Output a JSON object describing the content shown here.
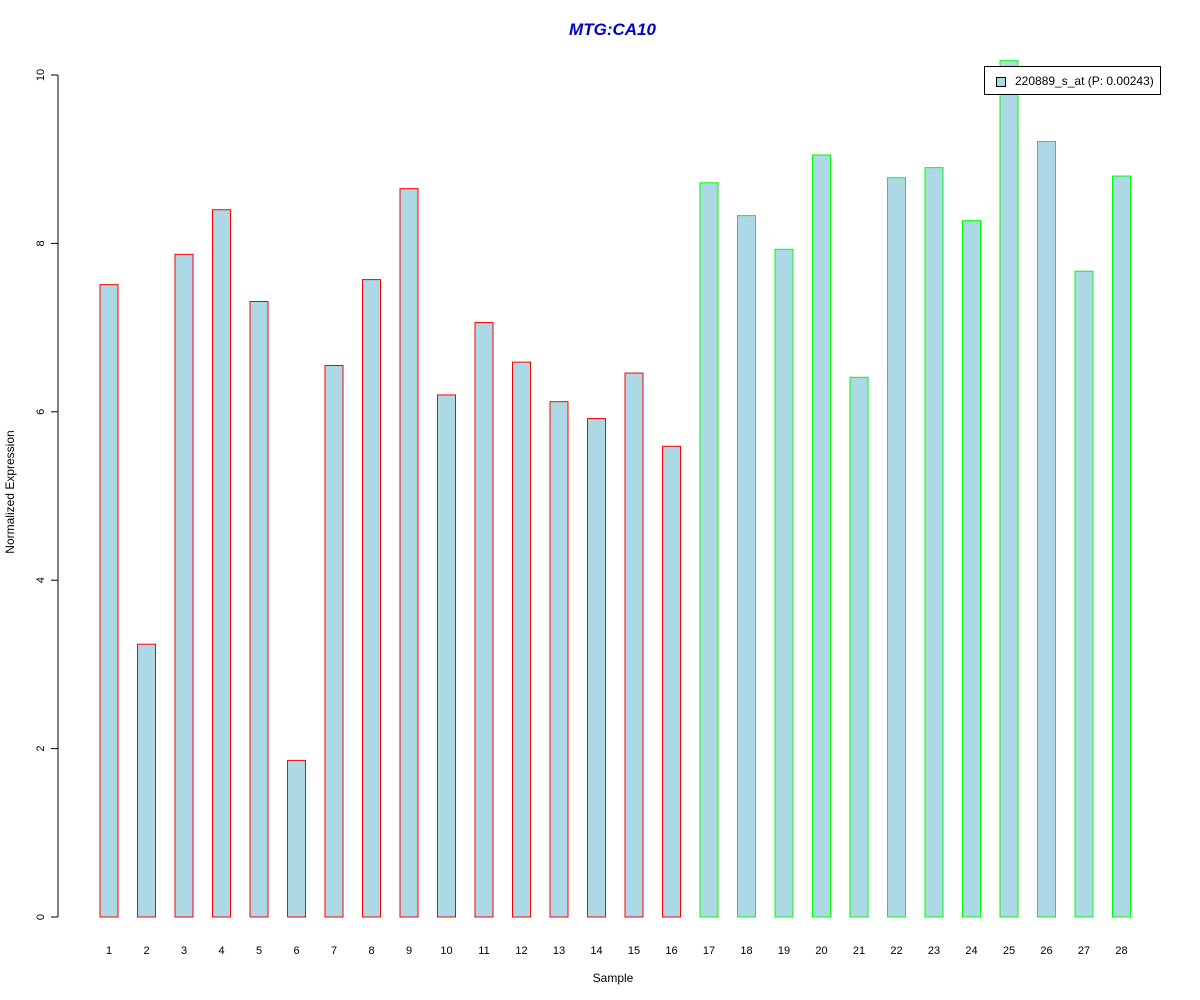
{
  "chart_data": {
    "type": "bar",
    "title": "MTG:CA10",
    "xlabel": "Sample",
    "ylabel": "Normalized Expression",
    "ylim": [
      0,
      10
    ],
    "yticks": [
      "0",
      "2",
      "4",
      "6",
      "8",
      "10"
    ],
    "categories": [
      "1",
      "2",
      "3",
      "4",
      "5",
      "6",
      "7",
      "8",
      "9",
      "10",
      "11",
      "12",
      "13",
      "14",
      "15",
      "16",
      "17",
      "18",
      "19",
      "20",
      "21",
      "22",
      "23",
      "24",
      "25",
      "26",
      "27",
      "28"
    ],
    "values": [
      7.51,
      3.24,
      7.87,
      8.4,
      7.31,
      1.86,
      6.55,
      7.57,
      8.65,
      6.2,
      7.06,
      6.59,
      6.12,
      5.92,
      6.46,
      5.59,
      8.72,
      8.33,
      7.93,
      9.05,
      6.41,
      8.78,
      8.9,
      8.27,
      10.17,
      9.21,
      7.67,
      8.8
    ],
    "groups": [
      1,
      1,
      1,
      1,
      1,
      1,
      1,
      1,
      1,
      1,
      1,
      1,
      1,
      1,
      1,
      1,
      2,
      2,
      2,
      2,
      2,
      2,
      2,
      2,
      2,
      2,
      2,
      2
    ],
    "legend": {
      "label": "220889_s_at (P: 0.00243)",
      "position": "top-right"
    },
    "grid": false
  },
  "colors": {
    "title": "#0000cc",
    "bar_fill": "#add8e6",
    "group1_border": "#ff0000",
    "group2_border": "#00ff00",
    "axis": "#000000"
  }
}
